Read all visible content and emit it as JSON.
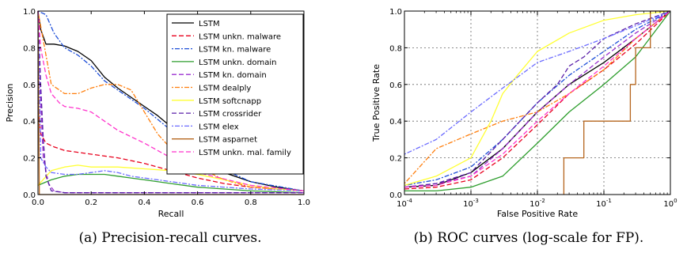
{
  "captions": {
    "left": "(a) Precision-recall curves.",
    "right": "(b) ROC curves (log-scale for FP)."
  },
  "chart_data": [
    {
      "type": "line",
      "xlabel": "Recall",
      "ylabel": "Precision",
      "xlim": [
        0,
        1
      ],
      "ylim": [
        0,
        1
      ],
      "x_ticks": [
        "0.0",
        "0.2",
        "0.4",
        "0.6",
        "0.8",
        "1.0"
      ],
      "y_ticks": [
        "0.0",
        "0.2",
        "0.4",
        "0.6",
        "0.8",
        "1.0"
      ],
      "grid": false,
      "legend_position": "top-right",
      "series": [
        {
          "name": "LSTM",
          "color": "#000000",
          "dash": "solid",
          "x": [
            0,
            0.01,
            0.03,
            0.06,
            0.1,
            0.15,
            0.2,
            0.25,
            0.3,
            0.35,
            0.4,
            0.45,
            0.5,
            0.55,
            0.6,
            0.7,
            0.8,
            0.9,
            1.0
          ],
          "y": [
            1.0,
            0.9,
            0.82,
            0.82,
            0.81,
            0.78,
            0.73,
            0.64,
            0.58,
            0.53,
            0.48,
            0.43,
            0.37,
            0.3,
            0.2,
            0.12,
            0.07,
            0.04,
            0.02
          ]
        },
        {
          "name": "LSTM unkn. malware",
          "color": "#e8001c",
          "dash": "6,3",
          "x": [
            0,
            0.01,
            0.03,
            0.06,
            0.1,
            0.15,
            0.2,
            0.3,
            0.4,
            0.5,
            0.6,
            0.7,
            0.8,
            1.0
          ],
          "y": [
            0.5,
            0.33,
            0.28,
            0.26,
            0.24,
            0.23,
            0.22,
            0.2,
            0.17,
            0.13,
            0.09,
            0.06,
            0.04,
            0.02
          ]
        },
        {
          "name": "LSTM kn. malware",
          "color": "#1f4fd8",
          "dash": "2,2,6,2",
          "x": [
            0,
            0.03,
            0.06,
            0.1,
            0.15,
            0.2,
            0.25,
            0.3,
            0.35,
            0.4,
            0.5,
            0.6,
            0.8,
            1.0
          ],
          "y": [
            1.0,
            0.98,
            0.88,
            0.8,
            0.76,
            0.7,
            0.62,
            0.57,
            0.52,
            0.47,
            0.35,
            0.2,
            0.07,
            0.02
          ]
        },
        {
          "name": "LSTM unkn. domain",
          "color": "#2e9e2e",
          "dash": "solid",
          "x": [
            0,
            0.05,
            0.1,
            0.15,
            0.2,
            0.25,
            0.3,
            0.35,
            0.4,
            0.5,
            0.6,
            0.7,
            0.8,
            0.9,
            1.0
          ],
          "y": [
            0.05,
            0.08,
            0.1,
            0.11,
            0.11,
            0.11,
            0.1,
            0.09,
            0.08,
            0.06,
            0.04,
            0.03,
            0.02,
            0.015,
            0.01
          ]
        },
        {
          "name": "LSTM kn. domain",
          "color": "#9b30d0",
          "dash": "6,3",
          "x": [
            0,
            0.01,
            0.02,
            0.04,
            0.06,
            0.1,
            0.3,
            0.6,
            1.0
          ],
          "y": [
            1.0,
            0.5,
            0.2,
            0.06,
            0.02,
            0.01,
            0.01,
            0.01,
            0.01
          ]
        },
        {
          "name": "LSTM dealply",
          "color": "#ff7f0e",
          "dash": "2,2,6,2",
          "x": [
            0,
            0.05,
            0.1,
            0.15,
            0.2,
            0.25,
            0.3,
            0.35,
            0.4,
            0.45,
            0.5,
            0.6,
            0.7,
            0.8,
            1.0
          ],
          "y": [
            1.0,
            0.6,
            0.55,
            0.55,
            0.58,
            0.6,
            0.6,
            0.57,
            0.45,
            0.33,
            0.25,
            0.15,
            0.08,
            0.04,
            0.02
          ]
        },
        {
          "name": "LSTM softcnapp",
          "color": "#ffff33",
          "dash": "solid",
          "x": [
            0,
            0.05,
            0.1,
            0.15,
            0.2,
            0.3,
            0.4,
            0.5,
            0.6,
            0.7,
            0.8,
            0.9,
            1.0
          ],
          "y": [
            0.05,
            0.13,
            0.15,
            0.16,
            0.15,
            0.15,
            0.14,
            0.13,
            0.11,
            0.08,
            0.05,
            0.03,
            0.02
          ]
        },
        {
          "name": "LSTM crossrider",
          "color": "#5a1fa8",
          "dash": "6,3",
          "x": [
            0,
            0.01,
            0.02,
            0.03,
            0.05,
            0.1,
            0.3,
            0.6,
            1.0
          ],
          "y": [
            1.0,
            0.6,
            0.3,
            0.1,
            0.02,
            0.01,
            0.01,
            0.01,
            0.01
          ]
        },
        {
          "name": "LSTM elex",
          "color": "#6b6bff",
          "dash": "2,2,6,2",
          "x": [
            0,
            0.01,
            0.03,
            0.05,
            0.1,
            0.15,
            0.2,
            0.25,
            0.3,
            0.35,
            0.45,
            0.6,
            0.8,
            1.0
          ],
          "y": [
            1.0,
            0.2,
            0.15,
            0.12,
            0.11,
            0.11,
            0.12,
            0.13,
            0.12,
            0.1,
            0.08,
            0.05,
            0.03,
            0.02
          ]
        },
        {
          "name": "LSTM asparnet",
          "color": "#b5651d",
          "dash": "solid",
          "x": [
            0,
            0.005,
            0.01,
            1.0
          ],
          "y": [
            1.0,
            0.0,
            0.0,
            0.0
          ]
        },
        {
          "name": "LSTM unkn. mal. family",
          "color": "#ff33cc",
          "dash": "6,3",
          "x": [
            0,
            0.01,
            0.03,
            0.05,
            0.08,
            0.1,
            0.15,
            0.2,
            0.3,
            0.4,
            0.5,
            0.6,
            0.8,
            1.0
          ],
          "y": [
            1.0,
            0.8,
            0.65,
            0.55,
            0.5,
            0.48,
            0.47,
            0.45,
            0.35,
            0.28,
            0.2,
            0.12,
            0.05,
            0.02
          ]
        }
      ]
    },
    {
      "type": "line",
      "xlabel": "False Positive Rate",
      "ylabel": "True Positive Rate",
      "x_scale": "log",
      "xlim": [
        0.0001,
        1
      ],
      "ylim": [
        0,
        1
      ],
      "x_tick_values": [
        0.0001,
        0.001,
        0.01,
        0.1,
        1
      ],
      "x_ticks": [
        "10",
        "10",
        "10",
        "10",
        "10"
      ],
      "x_tick_exponents": [
        "-4",
        "-3",
        "-2",
        "-1",
        "0"
      ],
      "y_ticks": [
        "0.0",
        "0.2",
        "0.4",
        "0.6",
        "0.8",
        "1.0"
      ],
      "grid": true,
      "series": [
        {
          "name": "LSTM",
          "color": "#000000",
          "dash": "solid",
          "x": [
            0.0001,
            0.0003,
            0.001,
            0.003,
            0.01,
            0.03,
            0.1,
            0.3,
            1.0
          ],
          "y": [
            0.04,
            0.05,
            0.12,
            0.25,
            0.45,
            0.6,
            0.72,
            0.85,
            1.0
          ]
        },
        {
          "name": "LSTM unkn. malware",
          "color": "#e8001c",
          "dash": "6,3",
          "x": [
            0.0001,
            0.0003,
            0.001,
            0.003,
            0.01,
            0.03,
            0.1,
            0.3,
            1.0
          ],
          "y": [
            0.03,
            0.04,
            0.08,
            0.2,
            0.38,
            0.55,
            0.68,
            0.82,
            1.0
          ]
        },
        {
          "name": "LSTM kn. malware",
          "color": "#1f4fd8",
          "dash": "2,2,6,2",
          "x": [
            0.0001,
            0.0003,
            0.001,
            0.003,
            0.01,
            0.03,
            0.1,
            0.3,
            1.0
          ],
          "y": [
            0.05,
            0.08,
            0.15,
            0.3,
            0.5,
            0.65,
            0.78,
            0.9,
            1.0
          ]
        },
        {
          "name": "LSTM unkn. domain",
          "color": "#2e9e2e",
          "dash": "solid",
          "x": [
            0.0001,
            0.0003,
            0.001,
            0.003,
            0.01,
            0.03,
            0.1,
            0.3,
            1.0
          ],
          "y": [
            0.02,
            0.02,
            0.04,
            0.1,
            0.28,
            0.45,
            0.6,
            0.75,
            1.0
          ]
        },
        {
          "name": "LSTM kn. domain",
          "color": "#9b30d0",
          "dash": "6,3",
          "x": [
            0.0001,
            0.0003,
            0.001,
            0.003,
            0.01,
            0.03,
            0.1,
            0.3,
            1.0
          ],
          "y": [
            0.04,
            0.06,
            0.1,
            0.25,
            0.45,
            0.6,
            0.75,
            0.88,
            1.0
          ]
        },
        {
          "name": "LSTM dealply",
          "color": "#ff7f0e",
          "dash": "2,2,6,2",
          "x": [
            0.0001,
            0.0003,
            0.001,
            0.003,
            0.01,
            0.03,
            0.1,
            0.3,
            1.0
          ],
          "y": [
            0.06,
            0.25,
            0.33,
            0.4,
            0.45,
            0.55,
            0.68,
            0.85,
            1.0
          ]
        },
        {
          "name": "LSTM softcnapp",
          "color": "#ffff33",
          "dash": "solid",
          "x": [
            0.0001,
            0.0003,
            0.001,
            0.002,
            0.003,
            0.005,
            0.01,
            0.03,
            0.1,
            0.3,
            1.0
          ],
          "y": [
            0.05,
            0.1,
            0.2,
            0.4,
            0.55,
            0.65,
            0.78,
            0.88,
            0.95,
            0.98,
            1.0
          ]
        },
        {
          "name": "LSTM crossrider",
          "color": "#5a1fa8",
          "dash": "6,3",
          "x": [
            0.0001,
            0.0003,
            0.001,
            0.003,
            0.01,
            0.02,
            0.03,
            0.05,
            0.1,
            0.3,
            1.0
          ],
          "y": [
            0.04,
            0.06,
            0.12,
            0.3,
            0.5,
            0.6,
            0.7,
            0.75,
            0.85,
            0.93,
            1.0
          ]
        },
        {
          "name": "LSTM elex",
          "color": "#6b6bff",
          "dash": "2,2,6,2",
          "x": [
            0.0001,
            0.0003,
            0.001,
            0.003,
            0.01,
            0.03,
            0.1,
            0.3,
            1.0
          ],
          "y": [
            0.22,
            0.3,
            0.45,
            0.58,
            0.72,
            0.78,
            0.85,
            0.92,
            1.0
          ]
        },
        {
          "name": "LSTM asparnet",
          "color": "#b5651d",
          "dash": "solid",
          "x": [
            0.025,
            0.025,
            0.05,
            0.05,
            0.25,
            0.25,
            0.3,
            0.3,
            0.5,
            0.5,
            1.0
          ],
          "y": [
            0.0,
            0.2,
            0.2,
            0.4,
            0.4,
            0.6,
            0.6,
            0.8,
            0.8,
            1.0,
            1.0
          ]
        },
        {
          "name": "LSTM unkn. mal. family",
          "color": "#ff33cc",
          "dash": "6,3",
          "x": [
            0.0001,
            0.0003,
            0.001,
            0.003,
            0.01,
            0.03,
            0.1,
            0.3,
            1.0
          ],
          "y": [
            0.04,
            0.05,
            0.1,
            0.22,
            0.4,
            0.55,
            0.7,
            0.85,
            1.0
          ]
        }
      ]
    }
  ]
}
